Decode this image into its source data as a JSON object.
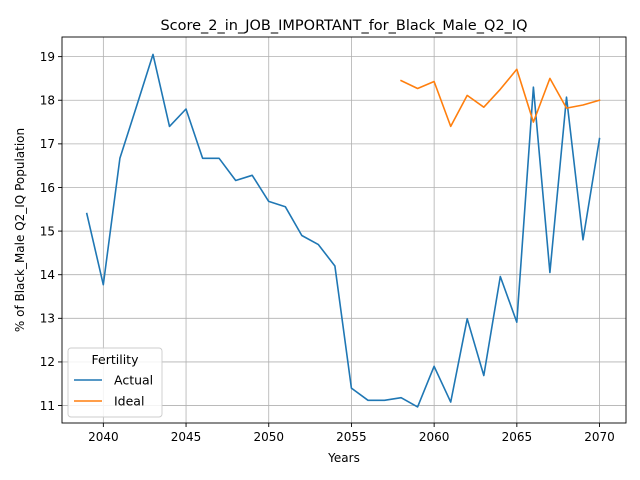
{
  "chart_data": {
    "type": "line",
    "title": "Score_2_in_JOB_IMPORTANT_for_Black_Male_Q2_IQ",
    "xlabel": "Years",
    "ylabel": "% of Black_Male Q2_IQ Population",
    "xlim": [
      2037.5,
      2071.6
    ],
    "ylim": [
      10.6,
      19.45
    ],
    "xticks": [
      2040,
      2045,
      2050,
      2055,
      2060,
      2065,
      2070
    ],
    "yticks": [
      11,
      12,
      13,
      14,
      15,
      16,
      17,
      18,
      19
    ],
    "grid": true,
    "legend": {
      "title": "Fertility",
      "placement": "lower-left"
    },
    "series": [
      {
        "name": "Actual",
        "color": "#1f77b4",
        "x": [
          2039,
          2040,
          2041,
          2042,
          2043,
          2044,
          2045,
          2046,
          2047,
          2048,
          2049,
          2050,
          2051,
          2052,
          2053,
          2054,
          2055,
          2056,
          2057,
          2058,
          2059,
          2060,
          2061,
          2062,
          2063,
          2064,
          2065,
          2066,
          2067,
          2068,
          2069,
          2070
        ],
        "values": [
          15.4,
          13.77,
          16.67,
          17.85,
          19.05,
          17.4,
          17.8,
          16.67,
          16.67,
          16.16,
          16.28,
          15.68,
          15.56,
          14.9,
          14.69,
          14.2,
          11.4,
          11.12,
          11.12,
          11.18,
          10.97,
          11.9,
          11.08,
          12.99,
          11.69,
          13.96,
          12.91,
          18.3,
          14.05,
          18.07,
          14.8,
          17.12
        ]
      },
      {
        "name": "Ideal",
        "color": "#ff7f0e",
        "x": [
          2058,
          2059,
          2060,
          2061,
          2062,
          2063,
          2064,
          2065,
          2066,
          2067,
          2068,
          2069,
          2070
        ],
        "values": [
          18.45,
          18.27,
          18.43,
          17.4,
          18.11,
          17.84,
          18.25,
          18.71,
          17.5,
          18.5,
          17.82,
          17.89,
          18.0
        ]
      }
    ]
  }
}
